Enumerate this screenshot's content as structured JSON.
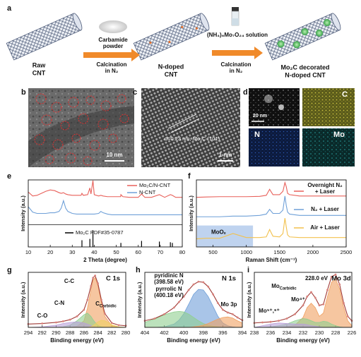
{
  "panel_labels": [
    "a",
    "b",
    "c",
    "d",
    "e",
    "f",
    "g",
    "h",
    "i"
  ],
  "schematic": {
    "raw_cnt": [
      "Raw",
      "CNT"
    ],
    "carbamide": [
      "Carbamide",
      "powder"
    ],
    "calcination_1": [
      "Calcination",
      "in N₂"
    ],
    "ndoped_cnt": [
      "N-doped",
      "CNT"
    ],
    "solution": "(NH₄)₆Mo₇O₂₄ solution",
    "calcination_2": [
      "Calcination",
      "in N₂"
    ],
    "final_cnt": [
      "Mo₂C decorated",
      "N-doped CNT"
    ]
  },
  "micrographs": {
    "b_scale": "10 nm",
    "c_annotation": "d=0.23 nm, Mo₂C (101)",
    "c_scale": "1 nm",
    "d_scale": "20 nm",
    "d_maps": [
      "C",
      "N",
      "Mo"
    ]
  },
  "chart_data": [
    {
      "type": "line",
      "xlabel": "2 Theta (degree)",
      "ylabel": "Intensity (a.u.)",
      "xlim": [
        10,
        80
      ],
      "xticks": [
        10,
        20,
        30,
        40,
        50,
        60,
        70,
        80
      ],
      "ylim": [
        0,
        10
      ],
      "yticks": [],
      "x": [
        10,
        12,
        14,
        16,
        18,
        20,
        22,
        24,
        25,
        26,
        27,
        28,
        30,
        32,
        34,
        34.4,
        35,
        37,
        38,
        38.5,
        39.4,
        40,
        42,
        43,
        44,
        46,
        48,
        50,
        52,
        52.1,
        53,
        56,
        60,
        61.5,
        63,
        66,
        69.6,
        72,
        74.6,
        75.5,
        77,
        80
      ],
      "series": [
        {
          "name": "Mo₂C/N-CNT",
          "color": "#e8605a",
          "values": [
            8.2,
            7.6,
            7.7,
            8.0,
            8.3,
            8.5,
            8.4,
            8.1,
            8.0,
            8.1,
            7.9,
            7.8,
            7.7,
            7.7,
            7.7,
            8.0,
            7.7,
            7.8,
            8.8,
            7.9,
            9.9,
            7.8,
            7.6,
            7.7,
            7.6,
            7.5,
            7.5,
            7.5,
            7.5,
            7.8,
            7.5,
            7.4,
            7.4,
            7.9,
            7.4,
            7.4,
            7.8,
            7.4,
            7.8,
            7.7,
            7.4,
            7.4
          ]
        },
        {
          "name": "N-CNT",
          "color": "#6fa0d8",
          "values": [
            6.0,
            5.2,
            5.0,
            5.0,
            5.0,
            5.1,
            5.1,
            5.3,
            5.8,
            6.9,
            5.8,
            5.3,
            5.0,
            4.9,
            4.9,
            4.9,
            4.9,
            4.9,
            4.9,
            4.9,
            4.9,
            4.9,
            5.0,
            5.3,
            5.1,
            4.9,
            4.8,
            4.8,
            4.8,
            4.8,
            4.8,
            4.8,
            4.8,
            4.8,
            4.8,
            4.8,
            4.8,
            4.8,
            4.8,
            4.8,
            4.8,
            4.8
          ]
        }
      ],
      "reference": {
        "name": "Mo₂C PDF#35-0787",
        "color": "#000000",
        "x": [
          34.4,
          38,
          39.4,
          52.1,
          61.5,
          69.6,
          74.6,
          75.5
        ],
        "values": [
          1.0,
          1.2,
          2.5,
          0.6,
          0.9,
          0.8,
          0.7,
          0.6
        ]
      }
    },
    {
      "type": "line",
      "xlabel": "Raman Shift (cm⁻¹)",
      "ylabel": "Intensity (a.u.)",
      "xlim": [
        250,
        2500
      ],
      "xticks": [
        500,
        1000,
        1500,
        2000,
        2500
      ],
      "ylim": [
        0,
        10
      ],
      "yticks": [],
      "region": {
        "label": "MoOₓ",
        "color": "#a9c4ea",
        "xrange": [
          260,
          1100
        ],
        "yrange": [
          0,
          3.2
        ]
      },
      "x": [
        250,
        400,
        600,
        800,
        1000,
        1200,
        1300,
        1350,
        1400,
        1500,
        1550,
        1580,
        1600,
        1620,
        1650,
        1800,
        2000,
        2200,
        2400,
        2500
      ],
      "series": [
        {
          "name": "Overnight N₂ + Laser",
          "color": "#e8605a",
          "values": [
            7.4,
            7.45,
            7.5,
            7.5,
            7.5,
            7.55,
            7.7,
            8.6,
            7.8,
            7.8,
            8.3,
            9.6,
            9.0,
            8.0,
            7.8,
            7.6,
            7.6,
            7.6,
            7.6,
            7.6
          ]
        },
        {
          "name": "N₂ + Laser",
          "color": "#6fa0d8",
          "values": [
            4.5,
            4.5,
            4.5,
            4.6,
            4.6,
            4.7,
            4.9,
            5.6,
            5.0,
            5.0,
            5.5,
            7.6,
            6.2,
            5.2,
            4.9,
            4.7,
            4.7,
            4.7,
            4.7,
            4.7
          ]
        },
        {
          "name": "Air + Laser",
          "color": "#f2c14e",
          "values": [
            1.2,
            1.3,
            1.3,
            2.0,
            1.4,
            1.4,
            1.5,
            2.6,
            1.6,
            1.5,
            2.0,
            4.3,
            3.0,
            1.8,
            1.5,
            1.4,
            1.4,
            1.4,
            1.4,
            1.4
          ]
        }
      ]
    },
    {
      "type": "line",
      "title": "C 1s",
      "xlabel": "Binding energy (eV)",
      "ylabel": "Intensity (a.u.)",
      "xlim": [
        294,
        280
      ],
      "xticks": [
        294,
        292,
        290,
        288,
        286,
        284,
        282,
        280
      ],
      "ylim": [
        0,
        10
      ],
      "yticks": [],
      "x": [
        294,
        292,
        290,
        289,
        288,
        287,
        286,
        285.5,
        285,
        284.7,
        284.4,
        284,
        283.5,
        283,
        282,
        281,
        280
      ],
      "series": [
        {
          "name": "C-C",
          "color": "#f0a060",
          "fill": true,
          "values": [
            0,
            0,
            0,
            0,
            0,
            0.2,
            1.2,
            3.5,
            6.8,
            8.6,
            9.0,
            7.6,
            4.5,
            2.0,
            0.3,
            0,
            0
          ]
        },
        {
          "name": "C-N",
          "color": "#8fcf8f",
          "fill": true,
          "values": [
            0,
            0,
            0,
            0.1,
            0.4,
            1.2,
            2.3,
            2.6,
            2.0,
            1.4,
            0.9,
            0.4,
            0.1,
            0,
            0,
            0,
            0
          ]
        },
        {
          "name": "C-O",
          "color": "#b8a0d8",
          "fill": true,
          "values": [
            0,
            0.1,
            0.4,
            0.7,
            0.9,
            1.0,
            0.8,
            0.6,
            0.3,
            0.2,
            0.1,
            0,
            0,
            0,
            0,
            0,
            0
          ]
        },
        {
          "name": "C",
          "name_sub": "Carbidic",
          "color": "#f0d060",
          "fill": true,
          "values": [
            0,
            0,
            0,
            0,
            0,
            0,
            0,
            0,
            0.1,
            0.3,
            0.6,
            1.0,
            1.3,
            1.2,
            0.5,
            0.1,
            0
          ]
        },
        {
          "color": "#d9807a",
          "markers": true,
          "values": [
            0.6,
            0.7,
            0.9,
            1.1,
            1.4,
            2.0,
            3.2,
            5.0,
            7.5,
            9.0,
            9.4,
            8.0,
            5.0,
            2.5,
            0.8,
            0.4,
            0.3
          ]
        }
      ]
    },
    {
      "type": "line",
      "title": "N 1s",
      "xlabel": "Binding energy (eV)",
      "ylabel": "Intensity (a.u.)",
      "xlim": [
        404,
        394
      ],
      "xticks": [
        404,
        402,
        400,
        398,
        396,
        394
      ],
      "ylim": [
        0,
        10
      ],
      "yticks": [],
      "x": [
        404,
        403,
        402,
        401,
        400.5,
        400,
        399.5,
        399,
        398.5,
        398,
        397.5,
        397,
        396.5,
        396,
        395.5,
        395,
        394.5,
        394
      ],
      "series": [
        {
          "name": "pyridinic N (398.58 eV)",
          "color": "#6f9fd8",
          "fill": true,
          "values": [
            0,
            0,
            0.1,
            0.6,
            1.3,
            2.5,
            4.2,
            6.0,
            6.9,
            6.8,
            5.6,
            3.8,
            2.0,
            0.8,
            0.3,
            0.1,
            0,
            0
          ]
        },
        {
          "name": "pyrrolic N (400.18 eV)",
          "color": "#8fcf8f",
          "fill": true,
          "values": [
            0.9,
            1.5,
            2.3,
            2.8,
            2.9,
            2.8,
            2.4,
            1.8,
            1.2,
            0.7,
            0.4,
            0.2,
            0.1,
            0,
            0,
            0,
            0,
            0
          ]
        },
        {
          "name": "Mo 3p",
          "color": "#f0a060",
          "fill": true,
          "values": [
            0,
            0,
            0,
            0,
            0,
            0,
            0,
            0.1,
            0.2,
            0.4,
            0.7,
            1.1,
            1.5,
            1.8,
            1.9,
            1.7,
            1.2,
            0.8
          ]
        },
        {
          "color": "#d9807a",
          "markers": true,
          "values": [
            1.2,
            1.6,
            2.4,
            3.6,
            4.6,
            5.6,
            6.8,
            7.8,
            8.3,
            8.2,
            7.4,
            6.0,
            4.4,
            3.2,
            2.7,
            2.4,
            1.8,
            1.3
          ]
        }
      ]
    },
    {
      "type": "line",
      "title": "Mo 3d",
      "xlabel": "Binding energy (eV)",
      "ylabel": "Intensity (a.u.)",
      "annotations": [
        "228.0 eV"
      ],
      "xlim": [
        238,
        226
      ],
      "xticks": [
        238,
        236,
        234,
        232,
        230,
        228,
        226
      ],
      "ylim": [
        0,
        10
      ],
      "yticks": [],
      "x": [
        238,
        237,
        236,
        235,
        234,
        233,
        232,
        231.5,
        231,
        230.5,
        230,
        229.5,
        229,
        228.5,
        228,
        227.5,
        227,
        226.5,
        226
      ],
      "series": [
        {
          "name": "Mo",
          "name_sub": "Carbidic",
          "color": "#f0a060",
          "fill": true,
          "values": [
            0,
            0,
            0,
            0,
            0.1,
            0.4,
            1.8,
            3.6,
            4.4,
            3.6,
            2.0,
            2.6,
            5.6,
            8.2,
            8.8,
            7.0,
            3.6,
            1.2,
            0.3
          ]
        },
        {
          "name": "Mo⁴⁺",
          "color": "#8fcf8f",
          "fill": true,
          "values": [
            0,
            0,
            0.1,
            0.3,
            0.6,
            1.2,
            1.6,
            1.5,
            1.2,
            0.9,
            0.9,
            1.1,
            1.0,
            0.6,
            0.3,
            0.1,
            0,
            0,
            0
          ]
        },
        {
          "name": "Mo⁵⁺,⁶⁺",
          "color": "#b8a0d8",
          "fill": true,
          "values": [
            0,
            0.3,
            0.6,
            0.8,
            0.7,
            0.6,
            0.6,
            0.5,
            0.3,
            0.2,
            0.1,
            0,
            0,
            0,
            0,
            0,
            0,
            0,
            0
          ]
        },
        {
          "color": "#d9807a",
          "markers": true,
          "values": [
            0.8,
            0.9,
            1.0,
            1.2,
            1.6,
            2.4,
            4.0,
            5.6,
            6.4,
            5.4,
            4.0,
            4.2,
            6.8,
            9.2,
            9.6,
            7.8,
            4.4,
            2.0,
            1.2
          ]
        }
      ]
    }
  ]
}
